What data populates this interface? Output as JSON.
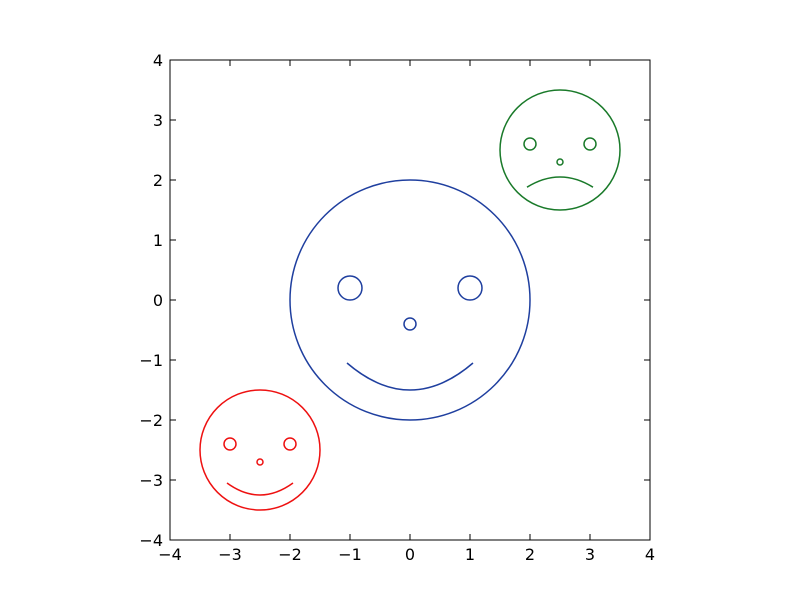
{
  "chart_data": {
    "type": "line",
    "title": "",
    "xlabel": "",
    "ylabel": "",
    "xlim": [
      -4,
      4
    ],
    "ylim": [
      -4,
      4
    ],
    "xticks": [
      -4,
      -3,
      -2,
      -1,
      0,
      1,
      2,
      3,
      4
    ],
    "yticks": [
      -4,
      -3,
      -2,
      -1,
      0,
      1,
      2,
      3,
      4
    ],
    "xtick_labels": [
      "−4",
      "−3",
      "−2",
      "−1",
      "0",
      "1",
      "2",
      "3",
      "4"
    ],
    "ytick_labels": [
      "−4",
      "−3",
      "−2",
      "−1",
      "0",
      "1",
      "2",
      "3",
      "4"
    ],
    "grid": false,
    "legend": "none",
    "series": [
      {
        "color": "#1f3f9f",
        "face": {
          "center": [
            0,
            0
          ],
          "radius": 2
        },
        "eyes": [
          {
            "center": [
              -1,
              0.2
            ],
            "radius": 0.2
          },
          {
            "center": [
              1,
              0.2
            ],
            "radius": 0.2
          }
        ],
        "nose": {
          "center": [
            0,
            -0.4
          ],
          "radius": 0.1
        },
        "mouth": {
          "shape": "smile",
          "center": [
            0,
            -1.5
          ],
          "half_width": 1.05,
          "end_y": -1.05
        }
      },
      {
        "color": "#1a7a2a",
        "face": {
          "center": [
            2.5,
            2.5
          ],
          "radius": 1
        },
        "eyes": [
          {
            "center": [
              2,
              2.6
            ],
            "radius": 0.1
          },
          {
            "center": [
              3,
              2.6
            ],
            "radius": 0.1
          }
        ],
        "nose": {
          "center": [
            2.5,
            2.3
          ],
          "radius": 0.05
        },
        "mouth": {
          "shape": "frown",
          "center": [
            2.5,
            2.05
          ],
          "half_width": 0.55,
          "end_y": 1.88
        }
      },
      {
        "color": "#ee1111",
        "face": {
          "center": [
            -2.5,
            -2.5
          ],
          "radius": 1
        },
        "eyes": [
          {
            "center": [
              -3,
              -2.4
            ],
            "radius": 0.1
          },
          {
            "center": [
              -2,
              -2.4
            ],
            "radius": 0.1
          }
        ],
        "nose": {
          "center": [
            -2.5,
            -2.7
          ],
          "radius": 0.05
        },
        "mouth": {
          "shape": "smile",
          "center": [
            -2.5,
            -3.25
          ],
          "half_width": 0.55,
          "end_y": -3.05
        }
      }
    ]
  }
}
